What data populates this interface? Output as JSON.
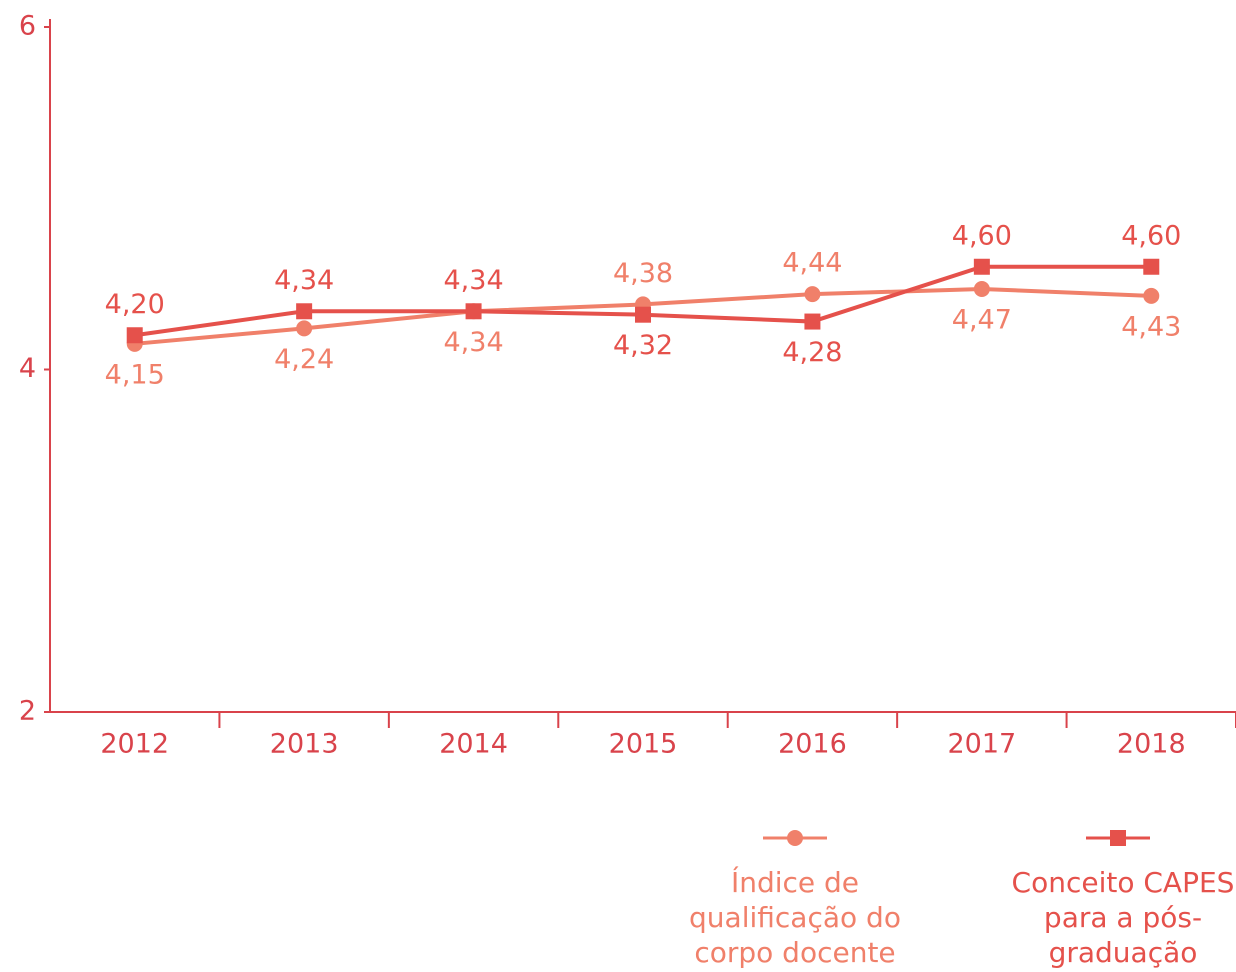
{
  "chart_data": {
    "type": "line",
    "categories": [
      "2012",
      "2013",
      "2014",
      "2015",
      "2016",
      "2017",
      "2018"
    ],
    "series": [
      {
        "name": "Índice de qualificação do corpo docente",
        "color": "#f0806a",
        "marker": "circle",
        "values": [
          4.15,
          4.24,
          4.34,
          4.38,
          4.44,
          4.47,
          4.43
        ],
        "value_labels": [
          "4,15",
          "4,24",
          "4,34",
          "4,38",
          "4,44",
          "4,47",
          "4,43"
        ]
      },
      {
        "name": "Conceito CAPES para a pós-graduação",
        "color": "#e5514b",
        "marker": "square",
        "values": [
          4.2,
          4.34,
          4.34,
          4.32,
          4.28,
          4.6,
          4.6
        ],
        "value_labels": [
          "4,20",
          "4,34",
          "4,34",
          "4,32",
          "4,28",
          "4,60",
          "4,60"
        ]
      }
    ],
    "ylim": [
      2,
      6
    ],
    "yticks": [
      2,
      4,
      6
    ],
    "axis_color": "#d9434b",
    "grid": false
  }
}
